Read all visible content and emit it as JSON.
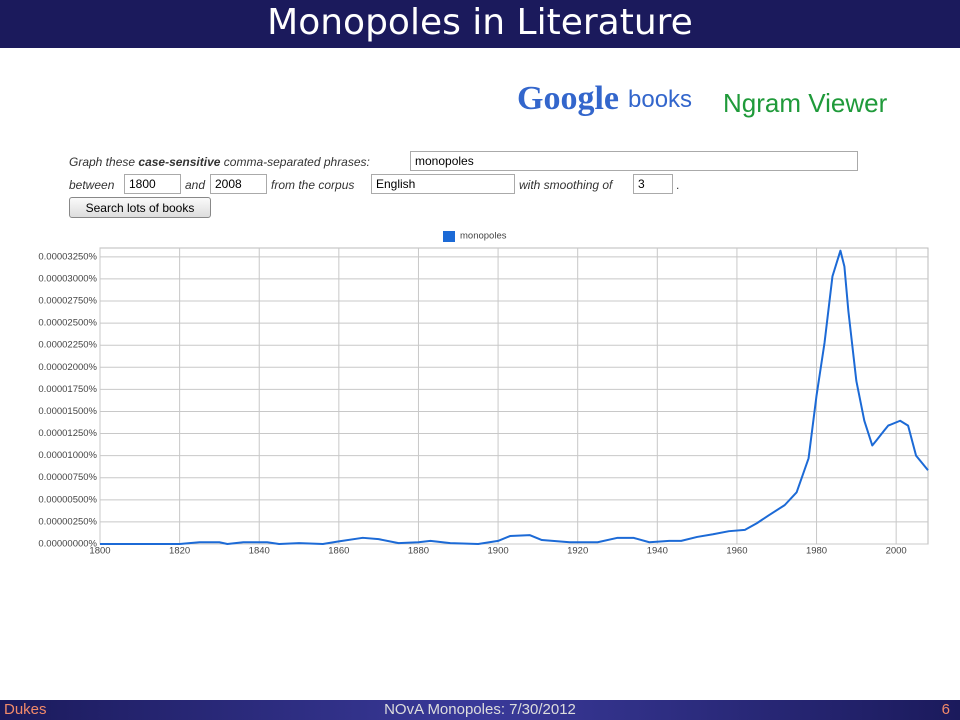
{
  "title": "Monopoles in Literature",
  "logo": {
    "brand": "Google",
    "product": "books",
    "tool": "Ngram Viewer"
  },
  "form": {
    "lead": "Graph these",
    "emphasis": "case-sensitive",
    "tail": "comma-separated phrases:",
    "phrases": "monopoles",
    "between": "between",
    "start": "1800",
    "and": "and",
    "end": "2008",
    "corpus_label": "from the corpus",
    "corpus": "English",
    "smoothing_label": "with smoothing of",
    "smoothing": "3",
    "period": ".",
    "button": "Search lots of books"
  },
  "footer": {
    "left": "Dukes",
    "center": "NOvA Monopoles: 7/30/2012",
    "page": "6"
  },
  "chart_data": {
    "type": "line",
    "grid": true,
    "xlim": [
      1800,
      2008
    ],
    "xticks": [
      1800,
      1820,
      1840,
      1860,
      1880,
      1900,
      1920,
      1940,
      1960,
      1980,
      2000
    ],
    "ylim": [
      0,
      3.35e-05
    ],
    "yticks": [
      {
        "value": 0,
        "label": "0.00000000%"
      },
      {
        "value": 2.5e-06,
        "label": "0.00000250%"
      },
      {
        "value": 5e-06,
        "label": "0.00000500%"
      },
      {
        "value": 7.5e-06,
        "label": "0.00000750%"
      },
      {
        "value": 1e-05,
        "label": "0.00001000%"
      },
      {
        "value": 1.25e-05,
        "label": "0.00001250%"
      },
      {
        "value": 1.5e-05,
        "label": "0.00001500%"
      },
      {
        "value": 1.75e-05,
        "label": "0.00001750%"
      },
      {
        "value": 2e-05,
        "label": "0.00002000%"
      },
      {
        "value": 2.25e-05,
        "label": "0.00002250%"
      },
      {
        "value": 2.5e-05,
        "label": "0.00002500%"
      },
      {
        "value": 2.75e-05,
        "label": "0.00002750%"
      },
      {
        "value": 3e-05,
        "label": "0.00003000%"
      },
      {
        "value": 3.25e-05,
        "label": "0.00003250%"
      }
    ],
    "x": [
      1800,
      1820,
      1825,
      1830,
      1832,
      1836,
      1842,
      1845,
      1850,
      1856,
      1860,
      1866,
      1870,
      1875,
      1880,
      1883,
      1888,
      1895,
      1900,
      1903,
      1908,
      1911,
      1918,
      1925,
      1930,
      1934,
      1938,
      1943,
      1946,
      1950,
      1954,
      1958,
      1962,
      1965,
      1968,
      1972,
      1975,
      1978,
      1980,
      1982,
      1984,
      1986,
      1987,
      1988,
      1990,
      1992,
      1994,
      1995,
      1997,
      1998,
      2001,
      2003,
      2005,
      2006,
      2008
    ],
    "series": [
      {
        "name": "monopoles",
        "color": "#1c6ad6",
        "values": [
          0,
          0,
          2e-07,
          2e-07,
          0,
          2e-07,
          2e-07,
          0,
          1e-07,
          0,
          3e-07,
          7e-07,
          5.5e-07,
          1e-07,
          2e-07,
          3.5e-07,
          1e-07,
          0,
          3.5e-07,
          9e-07,
          1e-06,
          4.5e-07,
          2e-07,
          2e-07,
          7e-07,
          7e-07,
          2e-07,
          3.5e-07,
          3.5e-07,
          8e-07,
          1.1e-06,
          1.45e-06,
          1.6e-06,
          2.35e-06,
          3.25e-06,
          4.4e-06,
          5.85e-06,
          9.7e-06,
          1.68e-05,
          2.275e-05,
          3.03e-05,
          3.32e-05,
          3.14e-05,
          2.635e-05,
          1.845e-05,
          1.395e-05,
          1.115e-05,
          1.17e-05,
          1.285e-05,
          1.34e-05,
          1.395e-05,
          1.34e-05,
          1e-05,
          9.45e-06,
          8.35e-06
        ]
      }
    ]
  }
}
